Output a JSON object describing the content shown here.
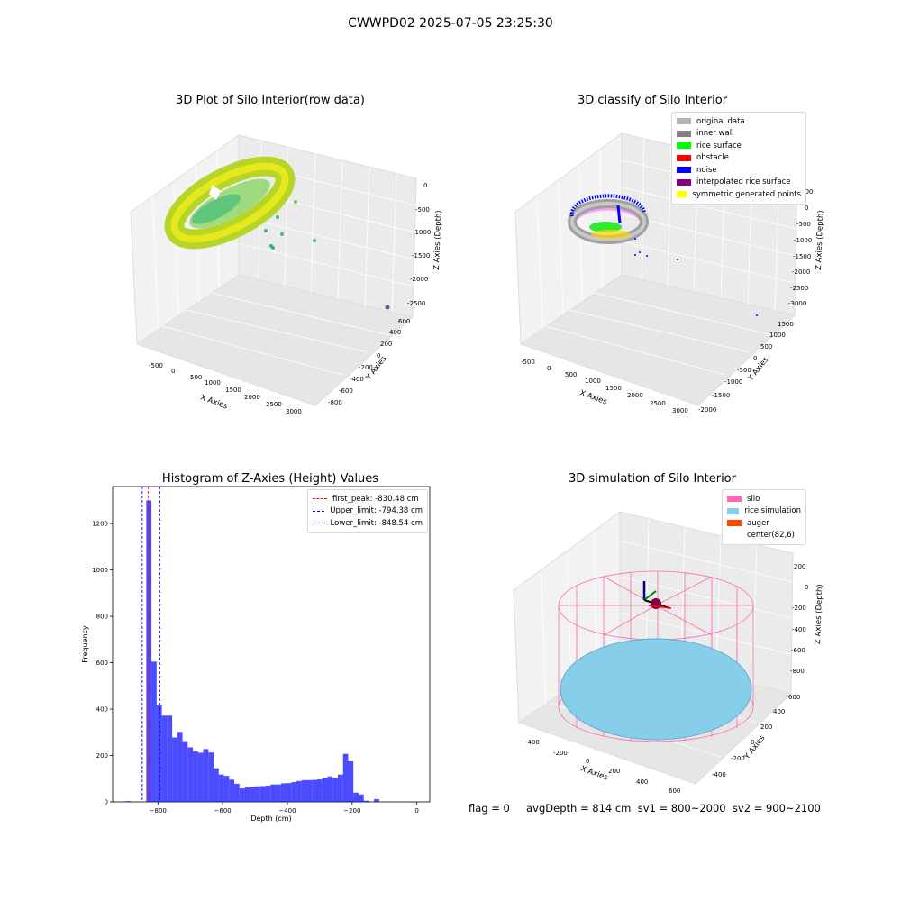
{
  "figure": {
    "suptitle": "CWWPD02 2025-07-05 23:25:30",
    "footer": "flag = 0     avgDepth = 814 cm  sv1 = 800~2000  sv2 = 900~2100"
  },
  "panels": {
    "raw": {
      "title": "3D Plot of Silo Interior(row data)",
      "xlabel": "X Axies",
      "ylabel": "Y Axies",
      "zlabel": "Z Axies (Depth)",
      "xticks": [
        "-500",
        "0",
        "500",
        "1000",
        "1500",
        "2000",
        "2500",
        "3000"
      ],
      "yticks": [
        "-800",
        "-600",
        "-400",
        "-200",
        "0",
        "200",
        "400",
        "600"
      ],
      "zticks": [
        "-2500",
        "-2000",
        "-1500",
        "-1000",
        "-500",
        "0"
      ]
    },
    "classify": {
      "title": "3D classify of Silo Interior",
      "xlabel": "X Axies",
      "ylabel": "Y Axies",
      "zlabel": "Z Axies (Depth)",
      "xticks": [
        "-500",
        "0",
        "500",
        "1000",
        "1500",
        "2000",
        "2500",
        "3000"
      ],
      "yticks": [
        "-2000",
        "-1500",
        "-1000",
        "-500",
        "0",
        "500",
        "1000",
        "1500"
      ],
      "zticks": [
        "-3000",
        "-2500",
        "-2000",
        "-1500",
        "-1000",
        "-500",
        "0",
        "500"
      ],
      "legend": [
        {
          "label": "original data",
          "color": "#b3b3b3"
        },
        {
          "label": "inner wall",
          "color": "#808080"
        },
        {
          "label": "rice surface",
          "color": "#00ff00"
        },
        {
          "label": "obstacle",
          "color": "#ff0000"
        },
        {
          "label": "noise",
          "color": "#0000ff"
        },
        {
          "label": "interpolated rice surface",
          "color": "#800080"
        },
        {
          "label": "symmetric generated points",
          "color": "#ffff00"
        }
      ]
    },
    "simulation": {
      "title": "3D simulation of Silo Interior",
      "xlabel": "X Axies",
      "ylabel": "Y Axies",
      "zlabel": "Z Axies (Depth)",
      "xticks": [
        "-400",
        "-200",
        "0",
        "200",
        "400",
        "600"
      ],
      "yticks": [
        "-400",
        "-200",
        "0",
        "200",
        "400",
        "600"
      ],
      "zticks": [
        "-800",
        "-600",
        "-400",
        "-200",
        "0",
        "200"
      ],
      "legend": [
        {
          "label": "silo",
          "color": "#ff69b4"
        },
        {
          "label": "rice simulation",
          "color": "#87ceeb"
        },
        {
          "label": "auger",
          "color": "#ff4500"
        },
        {
          "label": "center(82,6)",
          "color": ""
        }
      ]
    }
  },
  "chart_data": {
    "type": "bar",
    "title": "Histogram of Z-Axies (Height) Values",
    "xlabel": "Depth (cm)",
    "ylabel": "Frequency",
    "xlim": [
      -940,
      40
    ],
    "ylim": [
      0,
      1360
    ],
    "xticks": [
      -800,
      -600,
      -400,
      -200,
      0
    ],
    "yticks": [
      0,
      200,
      400,
      600,
      800,
      1000,
      1200
    ],
    "bar_color": "#0000ff",
    "bin_width": 16,
    "bins": [
      {
        "x": -900,
        "v": 3
      },
      {
        "x": -836,
        "v": 1300
      },
      {
        "x": -820,
        "v": 605
      },
      {
        "x": -804,
        "v": 418
      },
      {
        "x": -788,
        "v": 372
      },
      {
        "x": -772,
        "v": 372
      },
      {
        "x": -756,
        "v": 278
      },
      {
        "x": -740,
        "v": 302
      },
      {
        "x": -724,
        "v": 262
      },
      {
        "x": -708,
        "v": 235
      },
      {
        "x": -692,
        "v": 218
      },
      {
        "x": -676,
        "v": 212
      },
      {
        "x": -660,
        "v": 228
      },
      {
        "x": -644,
        "v": 213
      },
      {
        "x": -628,
        "v": 145
      },
      {
        "x": -612,
        "v": 118
      },
      {
        "x": -596,
        "v": 112
      },
      {
        "x": -580,
        "v": 96
      },
      {
        "x": -564,
        "v": 78
      },
      {
        "x": -548,
        "v": 58
      },
      {
        "x": -532,
        "v": 62
      },
      {
        "x": -516,
        "v": 66
      },
      {
        "x": -500,
        "v": 67
      },
      {
        "x": -484,
        "v": 68
      },
      {
        "x": -468,
        "v": 70
      },
      {
        "x": -452,
        "v": 75
      },
      {
        "x": -436,
        "v": 75
      },
      {
        "x": -420,
        "v": 80
      },
      {
        "x": -404,
        "v": 81
      },
      {
        "x": -388,
        "v": 85
      },
      {
        "x": -372,
        "v": 90
      },
      {
        "x": -356,
        "v": 94
      },
      {
        "x": -340,
        "v": 94
      },
      {
        "x": -324,
        "v": 95
      },
      {
        "x": -308,
        "v": 97
      },
      {
        "x": -292,
        "v": 102
      },
      {
        "x": -276,
        "v": 110
      },
      {
        "x": -260,
        "v": 103
      },
      {
        "x": -244,
        "v": 118
      },
      {
        "x": -228,
        "v": 207
      },
      {
        "x": -212,
        "v": 175
      },
      {
        "x": -196,
        "v": 40
      },
      {
        "x": -180,
        "v": 32
      },
      {
        "x": -164,
        "v": 5
      },
      {
        "x": -132,
        "v": 12
      }
    ],
    "vlines": [
      {
        "label": "first_peak: -830.48 cm",
        "value": -830.48,
        "color": "#ff0000"
      },
      {
        "label": "Upper_limit: -794.38 cm",
        "value": -794.38,
        "color": "#0000ff"
      },
      {
        "label": "Lower_limit: -848.54 cm",
        "value": -848.54,
        "color": "#0000ff"
      }
    ],
    "legend_position": "upper right"
  }
}
